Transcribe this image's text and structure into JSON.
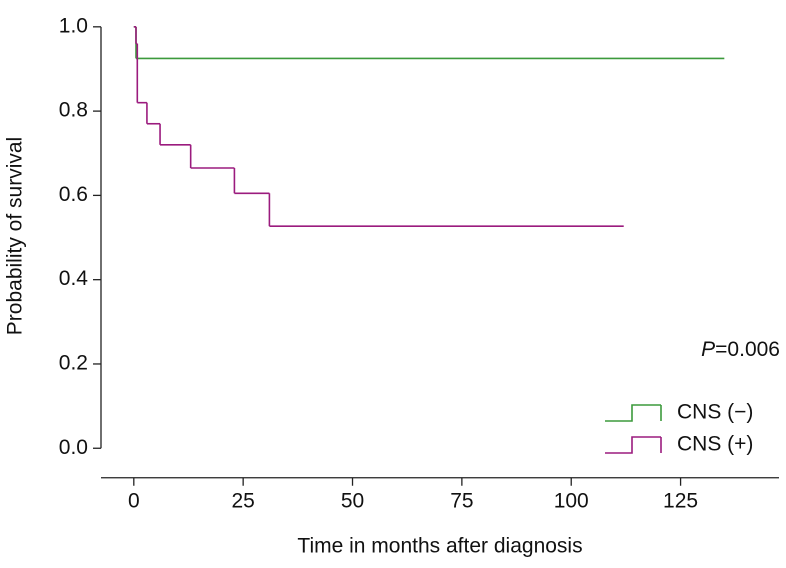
{
  "chart_data": {
    "type": "step",
    "xlabel": "Time in months after diagnosis",
    "ylabel": "Probability of survival",
    "annotation": {
      "italic": "P",
      "text": "=0.006"
    },
    "xlim": [
      -7.5,
      147.5
    ],
    "xticks": [
      0,
      25,
      50,
      75,
      100,
      125
    ],
    "ylim": [
      -0.07,
      1.05
    ],
    "yticks": [
      {
        "value": 0,
        "label": "0.0"
      },
      0.2,
      0.4,
      0.6,
      0.8,
      {
        "value": 1,
        "label": "1.0"
      }
    ],
    "legend": "bottom-right",
    "series": [
      {
        "name": "CNS (−)",
        "color": "#3c9a3c",
        "x": [
          0,
          0.5,
          135
        ],
        "values": [
          1.0,
          0.925,
          0.925
        ]
      },
      {
        "name": "CNS (+)",
        "color": "#9b1b7e",
        "x": [
          0,
          0.5,
          0.8,
          3,
          6,
          13,
          23,
          31,
          112
        ],
        "values": [
          1.0,
          0.96,
          0.82,
          0.77,
          0.72,
          0.665,
          0.605,
          0.527,
          0.527
        ]
      }
    ]
  }
}
